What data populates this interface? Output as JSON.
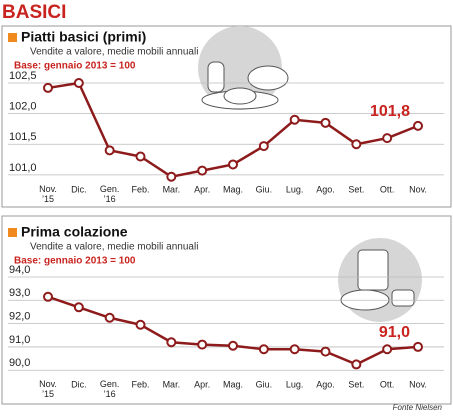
{
  "header": {
    "title": "BASICI"
  },
  "source": "Fonte Nielsen",
  "chart_data": [
    {
      "type": "line",
      "title": "Piatti basici (primi)",
      "subtitle": "Vendite a valore, medie mobili annuali",
      "note": "Base: gennaio 2013 = 100",
      "categories": [
        "Nov.\n’15",
        "Dic.",
        "Gen.\n’16",
        "Feb.",
        "Mar.",
        "Apr.",
        "Mag.",
        "Giu.",
        "Lug.",
        "Ago.",
        "Set.",
        "Ott.",
        "Nov."
      ],
      "values": [
        102.42,
        102.5,
        101.4,
        101.3,
        100.97,
        101.07,
        101.17,
        101.47,
        101.9,
        101.85,
        101.5,
        101.6,
        101.8
      ],
      "value_labels": [
        null,
        null,
        null,
        null,
        null,
        null,
        null,
        null,
        null,
        null,
        null,
        null,
        "101,8"
      ],
      "color": "#8e1b1b",
      "grid": true,
      "ylim": [
        100.9,
        102.6
      ],
      "yticks": [
        {
          "value": 101.0,
          "label": "101,0"
        },
        {
          "value": 101.5,
          "label": "101,5"
        },
        {
          "value": 102.0,
          "label": "102,0"
        },
        {
          "value": 102.5,
          "label": "102,5"
        }
      ]
    },
    {
      "type": "line",
      "title": "Prima colazione",
      "subtitle": "Vendite a valore, medie mobili annuali",
      "note": "Base: gennaio 2013 = 100",
      "categories": [
        "Nov.\n’15",
        "Dic.",
        "Gen.\n’16",
        "Feb.",
        "Mar.",
        "Apr.",
        "Mag.",
        "Giu.",
        "Lug.",
        "Ago.",
        "Set.",
        "Ott.",
        "Nov."
      ],
      "values": [
        93.15,
        92.7,
        92.25,
        91.95,
        91.2,
        91.1,
        91.05,
        90.9,
        90.9,
        90.8,
        90.25,
        90.9,
        91.0
      ],
      "value_labels": [
        null,
        null,
        null,
        null,
        null,
        null,
        null,
        null,
        null,
        null,
        null,
        null,
        "91,0"
      ],
      "color": "#8e1b1b",
      "grid": true,
      "ylim": [
        89.8,
        94.2
      ],
      "yticks": [
        {
          "value": 90.0,
          "label": "90,0"
        },
        {
          "value": 91.0,
          "label": "91,0"
        },
        {
          "value": 92.0,
          "label": "92,0"
        },
        {
          "value": 93.0,
          "label": "93,0"
        },
        {
          "value": 94.0,
          "label": "94,0"
        }
      ]
    }
  ]
}
